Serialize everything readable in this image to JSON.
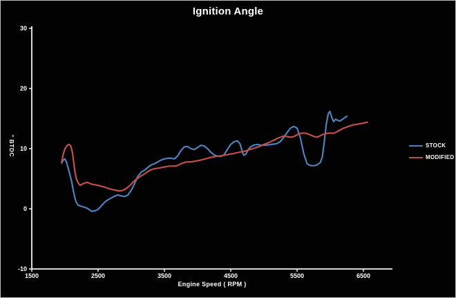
{
  "window": {
    "background": "#020202",
    "border_color": "#bdbdbd"
  },
  "chart_data": {
    "type": "line",
    "title": "Ignition Angle",
    "xlabel": "Engine Speed ( RPM )",
    "ylabel": "° BTDC",
    "xlim": [
      1500,
      6940
    ],
    "ylim": [
      -10,
      30
    ],
    "x_ticks": [
      1500,
      2500,
      3500,
      4500,
      5500,
      6500
    ],
    "y_ticks": [
      30,
      20,
      10,
      0,
      -10
    ],
    "grid": false,
    "legend_position": "right",
    "plot_background": "#020202",
    "axis_color": "#f2f2f2",
    "text_color": "#ffffff",
    "series": [
      {
        "name": "STOCK",
        "color": "#4F81BD",
        "points": [
          [
            1950,
            7.6
          ],
          [
            1975,
            8.1
          ],
          [
            2000,
            8.3
          ],
          [
            2025,
            7.7
          ],
          [
            2050,
            6.7
          ],
          [
            2075,
            5.7
          ],
          [
            2100,
            4.6
          ],
          [
            2125,
            3.1
          ],
          [
            2150,
            1.8
          ],
          [
            2175,
            1.0
          ],
          [
            2200,
            0.6
          ],
          [
            2250,
            0.4
          ],
          [
            2300,
            0.25
          ],
          [
            2350,
            0.0
          ],
          [
            2400,
            -0.4
          ],
          [
            2450,
            -0.35
          ],
          [
            2500,
            -0.1
          ],
          [
            2550,
            0.5
          ],
          [
            2600,
            1.1
          ],
          [
            2650,
            1.5
          ],
          [
            2700,
            1.8
          ],
          [
            2750,
            2.1
          ],
          [
            2800,
            2.3
          ],
          [
            2850,
            2.15
          ],
          [
            2900,
            2.05
          ],
          [
            2950,
            2.3
          ],
          [
            3000,
            3.1
          ],
          [
            3050,
            4.2
          ],
          [
            3100,
            5.4
          ],
          [
            3150,
            6.1
          ],
          [
            3200,
            6.4
          ],
          [
            3250,
            6.9
          ],
          [
            3300,
            7.3
          ],
          [
            3350,
            7.5
          ],
          [
            3400,
            7.8
          ],
          [
            3450,
            8.1
          ],
          [
            3500,
            8.3
          ],
          [
            3550,
            8.4
          ],
          [
            3600,
            8.4
          ],
          [
            3650,
            8.3
          ],
          [
            3700,
            8.8
          ],
          [
            3750,
            9.7
          ],
          [
            3800,
            10.3
          ],
          [
            3850,
            10.35
          ],
          [
            3900,
            10.0
          ],
          [
            3950,
            9.85
          ],
          [
            4000,
            10.2
          ],
          [
            4050,
            10.55
          ],
          [
            4100,
            10.45
          ],
          [
            4150,
            10.0
          ],
          [
            4200,
            9.4
          ],
          [
            4250,
            8.95
          ],
          [
            4300,
            8.75
          ],
          [
            4350,
            8.7
          ],
          [
            4400,
            9.0
          ],
          [
            4450,
            9.9
          ],
          [
            4500,
            10.7
          ],
          [
            4550,
            11.15
          ],
          [
            4600,
            11.3
          ],
          [
            4640,
            10.8
          ],
          [
            4680,
            9.3
          ],
          [
            4700,
            8.9
          ],
          [
            4730,
            9.1
          ],
          [
            4760,
            9.8
          ],
          [
            4800,
            10.3
          ],
          [
            4850,
            10.6
          ],
          [
            4900,
            10.7
          ],
          [
            4950,
            10.6
          ],
          [
            5000,
            10.55
          ],
          [
            5050,
            10.6
          ],
          [
            5100,
            10.7
          ],
          [
            5150,
            10.75
          ],
          [
            5200,
            10.85
          ],
          [
            5250,
            11.2
          ],
          [
            5300,
            11.9
          ],
          [
            5350,
            12.7
          ],
          [
            5400,
            13.4
          ],
          [
            5450,
            13.7
          ],
          [
            5500,
            13.4
          ],
          [
            5550,
            11.8
          ],
          [
            5600,
            9.2
          ],
          [
            5650,
            7.5
          ],
          [
            5700,
            7.2
          ],
          [
            5750,
            7.15
          ],
          [
            5800,
            7.3
          ],
          [
            5850,
            7.7
          ],
          [
            5880,
            8.6
          ],
          [
            5910,
            11.2
          ],
          [
            5940,
            14.0
          ],
          [
            5970,
            15.8
          ],
          [
            5995,
            16.2
          ],
          [
            6020,
            15.3
          ],
          [
            6050,
            14.5
          ],
          [
            6080,
            14.9
          ],
          [
            6110,
            14.7
          ],
          [
            6150,
            14.6
          ],
          [
            6200,
            15.0
          ],
          [
            6250,
            15.4
          ]
        ]
      },
      {
        "name": "MODIFIED",
        "color": "#C0504D",
        "points": [
          [
            1950,
            7.7
          ],
          [
            1975,
            9.1
          ],
          [
            2000,
            10.0
          ],
          [
            2030,
            10.5
          ],
          [
            2060,
            10.7
          ],
          [
            2090,
            10.4
          ],
          [
            2110,
            9.5
          ],
          [
            2130,
            7.9
          ],
          [
            2150,
            6.2
          ],
          [
            2175,
            4.9
          ],
          [
            2200,
            4.3
          ],
          [
            2230,
            3.9
          ],
          [
            2260,
            4.1
          ],
          [
            2300,
            4.3
          ],
          [
            2340,
            4.4
          ],
          [
            2400,
            4.1
          ],
          [
            2450,
            4.0
          ],
          [
            2500,
            3.9
          ],
          [
            2550,
            3.75
          ],
          [
            2600,
            3.6
          ],
          [
            2650,
            3.4
          ],
          [
            2700,
            3.25
          ],
          [
            2750,
            3.1
          ],
          [
            2800,
            3.0
          ],
          [
            2850,
            3.0
          ],
          [
            2900,
            3.2
          ],
          [
            2950,
            3.6
          ],
          [
            3000,
            4.1
          ],
          [
            3050,
            4.7
          ],
          [
            3100,
            5.1
          ],
          [
            3150,
            5.5
          ],
          [
            3200,
            5.8
          ],
          [
            3250,
            6.2
          ],
          [
            3300,
            6.5
          ],
          [
            3350,
            6.65
          ],
          [
            3400,
            6.75
          ],
          [
            3450,
            6.85
          ],
          [
            3500,
            6.95
          ],
          [
            3550,
            7.05
          ],
          [
            3600,
            7.1
          ],
          [
            3650,
            7.1
          ],
          [
            3700,
            7.2
          ],
          [
            3750,
            7.5
          ],
          [
            3800,
            7.7
          ],
          [
            3850,
            7.8
          ],
          [
            3900,
            7.8
          ],
          [
            3950,
            7.9
          ],
          [
            4000,
            8.0
          ],
          [
            4050,
            8.1
          ],
          [
            4100,
            8.25
          ],
          [
            4150,
            8.4
          ],
          [
            4200,
            8.55
          ],
          [
            4250,
            8.65
          ],
          [
            4300,
            8.75
          ],
          [
            4350,
            8.8
          ],
          [
            4400,
            8.9
          ],
          [
            4450,
            9.0
          ],
          [
            4500,
            9.1
          ],
          [
            4550,
            9.2
          ],
          [
            4600,
            9.35
          ],
          [
            4650,
            9.45
          ],
          [
            4700,
            9.55
          ],
          [
            4750,
            9.7
          ],
          [
            4800,
            9.9
          ],
          [
            4850,
            10.05
          ],
          [
            4900,
            10.25
          ],
          [
            4950,
            10.45
          ],
          [
            5000,
            10.7
          ],
          [
            5050,
            10.9
          ],
          [
            5100,
            11.15
          ],
          [
            5150,
            11.4
          ],
          [
            5200,
            11.7
          ],
          [
            5250,
            11.9
          ],
          [
            5300,
            12.1
          ],
          [
            5350,
            12.0
          ],
          [
            5400,
            11.9
          ],
          [
            5450,
            12.0
          ],
          [
            5500,
            12.3
          ],
          [
            5550,
            12.55
          ],
          [
            5600,
            12.6
          ],
          [
            5650,
            12.5
          ],
          [
            5700,
            12.3
          ],
          [
            5750,
            12.05
          ],
          [
            5800,
            11.9
          ],
          [
            5850,
            12.15
          ],
          [
            5900,
            12.4
          ],
          [
            5950,
            12.55
          ],
          [
            6000,
            12.6
          ],
          [
            6050,
            12.55
          ],
          [
            6100,
            12.8
          ],
          [
            6150,
            13.1
          ],
          [
            6200,
            13.4
          ],
          [
            6250,
            13.6
          ],
          [
            6300,
            13.8
          ],
          [
            6350,
            13.95
          ],
          [
            6400,
            14.05
          ],
          [
            6450,
            14.15
          ],
          [
            6500,
            14.25
          ],
          [
            6560,
            14.4
          ]
        ]
      }
    ]
  }
}
